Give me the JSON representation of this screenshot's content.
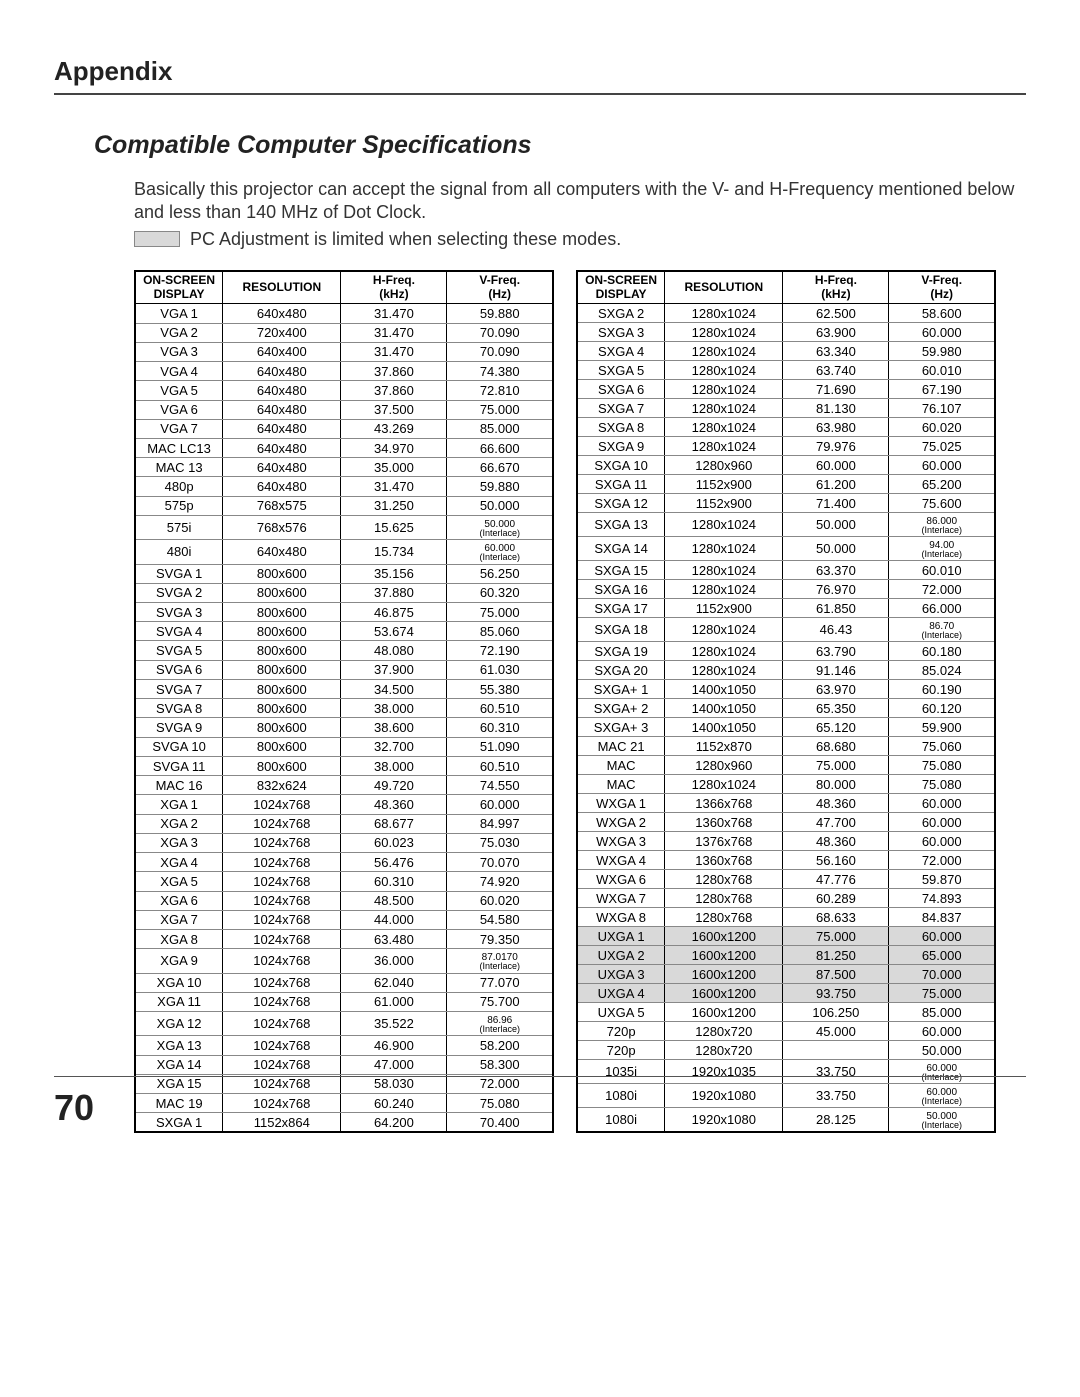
{
  "section_title": "Appendix",
  "sub_title": "Compatible Computer Specifications",
  "body_text": "Basically this projector can accept the signal from all computers with the V- and H-Frequency mentioned below and less than 140 MHz of Dot Clock.",
  "legend_text": "PC Adjustment is limited when selecting these modes.",
  "page_number": "70",
  "headers": {
    "c1": "ON-SCREEN\nDISPLAY",
    "c2": "RESOLUTION",
    "c3_top": "H-Freq.",
    "c3_bot": "(kHz)",
    "c4_top": "V-Freq.",
    "c4_bot": "(Hz)"
  },
  "highlight_color": "#d9d9d9",
  "table_left": [
    {
      "d": "VGA 1",
      "r": "640x480",
      "h": "31.470",
      "v": "59.880"
    },
    {
      "d": "VGA 2",
      "r": "720x400",
      "h": "31.470",
      "v": "70.090"
    },
    {
      "d": "VGA 3",
      "r": "640x400",
      "h": "31.470",
      "v": "70.090"
    },
    {
      "d": "VGA 4",
      "r": "640x480",
      "h": "37.860",
      "v": "74.380"
    },
    {
      "d": "VGA 5",
      "r": "640x480",
      "h": "37.860",
      "v": "72.810"
    },
    {
      "d": "VGA 6",
      "r": "640x480",
      "h": "37.500",
      "v": "75.000"
    },
    {
      "d": "VGA 7",
      "r": "640x480",
      "h": "43.269",
      "v": "85.000"
    },
    {
      "d": "MAC LC13",
      "r": "640x480",
      "h": "34.970",
      "v": "66.600"
    },
    {
      "d": "MAC 13",
      "r": "640x480",
      "h": "35.000",
      "v": "66.670"
    },
    {
      "d": "480p",
      "r": "640x480",
      "h": "31.470",
      "v": "59.880"
    },
    {
      "d": "575p",
      "r": "768x575",
      "h": "31.250",
      "v": "50.000"
    },
    {
      "d": "575i",
      "r": "768x576",
      "h": "15.625",
      "v": "50.000",
      "vi": "(Interlace)"
    },
    {
      "d": "480i",
      "r": "640x480",
      "h": "15.734",
      "v": "60.000",
      "vi": "(Interlace)"
    },
    {
      "d": "SVGA 1",
      "r": "800x600",
      "h": "35.156",
      "v": "56.250"
    },
    {
      "d": "SVGA 2",
      "r": "800x600",
      "h": "37.880",
      "v": "60.320"
    },
    {
      "d": "SVGA 3",
      "r": "800x600",
      "h": "46.875",
      "v": "75.000"
    },
    {
      "d": "SVGA 4",
      "r": "800x600",
      "h": "53.674",
      "v": "85.060"
    },
    {
      "d": "SVGA 5",
      "r": "800x600",
      "h": "48.080",
      "v": "72.190"
    },
    {
      "d": "SVGA 6",
      "r": "800x600",
      "h": "37.900",
      "v": "61.030"
    },
    {
      "d": "SVGA 7",
      "r": "800x600",
      "h": "34.500",
      "v": "55.380"
    },
    {
      "d": "SVGA 8",
      "r": "800x600",
      "h": "38.000",
      "v": "60.510"
    },
    {
      "d": "SVGA 9",
      "r": "800x600",
      "h": "38.600",
      "v": "60.310"
    },
    {
      "d": "SVGA 10",
      "r": "800x600",
      "h": "32.700",
      "v": "51.090"
    },
    {
      "d": "SVGA 11",
      "r": "800x600",
      "h": "38.000",
      "v": "60.510"
    },
    {
      "d": "MAC 16",
      "r": "832x624",
      "h": "49.720",
      "v": "74.550"
    },
    {
      "d": "XGA 1",
      "r": "1024x768",
      "h": "48.360",
      "v": "60.000"
    },
    {
      "d": "XGA 2",
      "r": "1024x768",
      "h": "68.677",
      "v": "84.997"
    },
    {
      "d": "XGA 3",
      "r": "1024x768",
      "h": "60.023",
      "v": "75.030"
    },
    {
      "d": "XGA 4",
      "r": "1024x768",
      "h": "56.476",
      "v": "70.070"
    },
    {
      "d": "XGA 5",
      "r": "1024x768",
      "h": "60.310",
      "v": "74.920"
    },
    {
      "d": "XGA 6",
      "r": "1024x768",
      "h": "48.500",
      "v": "60.020"
    },
    {
      "d": "XGA 7",
      "r": "1024x768",
      "h": "44.000",
      "v": "54.580"
    },
    {
      "d": "XGA 8",
      "r": "1024x768",
      "h": "63.480",
      "v": "79.350"
    },
    {
      "d": "XGA 9",
      "r": "1024x768",
      "h": "36.000",
      "v": "87.0170",
      "vi": "(Interlace)"
    },
    {
      "d": "XGA 10",
      "r": "1024x768",
      "h": "62.040",
      "v": "77.070"
    },
    {
      "d": "XGA 11",
      "r": "1024x768",
      "h": "61.000",
      "v": "75.700"
    },
    {
      "d": "XGA 12",
      "r": "1024x768",
      "h": "35.522",
      "v": "86.96",
      "vi": "(Interlace)"
    },
    {
      "d": "XGA 13",
      "r": "1024x768",
      "h": "46.900",
      "v": "58.200"
    },
    {
      "d": "XGA 14",
      "r": "1024x768",
      "h": "47.000",
      "v": "58.300"
    },
    {
      "d": "XGA 15",
      "r": "1024x768",
      "h": "58.030",
      "v": "72.000"
    },
    {
      "d": "MAC 19",
      "r": "1024x768",
      "h": "60.240",
      "v": "75.080"
    },
    {
      "d": "SXGA 1",
      "r": "1152x864",
      "h": "64.200",
      "v": "70.400"
    }
  ],
  "table_right": [
    {
      "d": "SXGA 2",
      "r": "1280x1024",
      "h": "62.500",
      "v": "58.600"
    },
    {
      "d": "SXGA 3",
      "r": "1280x1024",
      "h": "63.900",
      "v": "60.000"
    },
    {
      "d": "SXGA 4",
      "r": "1280x1024",
      "h": "63.340",
      "v": "59.980"
    },
    {
      "d": "SXGA 5",
      "r": "1280x1024",
      "h": "63.740",
      "v": "60.010"
    },
    {
      "d": "SXGA 6",
      "r": "1280x1024",
      "h": "71.690",
      "v": "67.190"
    },
    {
      "d": "SXGA 7",
      "r": "1280x1024",
      "h": "81.130",
      "v": "76.107"
    },
    {
      "d": "SXGA 8",
      "r": "1280x1024",
      "h": "63.980",
      "v": "60.020"
    },
    {
      "d": "SXGA 9",
      "r": "1280x1024",
      "h": "79.976",
      "v": "75.025"
    },
    {
      "d": "SXGA 10",
      "r": "1280x960",
      "h": "60.000",
      "v": "60.000"
    },
    {
      "d": "SXGA 11",
      "r": "1152x900",
      "h": "61.200",
      "v": "65.200"
    },
    {
      "d": "SXGA 12",
      "r": "1152x900",
      "h": "71.400",
      "v": "75.600"
    },
    {
      "d": "SXGA 13",
      "r": "1280x1024",
      "h": "50.000",
      "v": "86.000",
      "vi": "(Interlace)"
    },
    {
      "d": "SXGA 14",
      "r": "1280x1024",
      "h": "50.000",
      "v": "94.00",
      "vi": "(Interlace)"
    },
    {
      "d": "SXGA 15",
      "r": "1280x1024",
      "h": "63.370",
      "v": "60.010"
    },
    {
      "d": "SXGA 16",
      "r": "1280x1024",
      "h": "76.970",
      "v": "72.000"
    },
    {
      "d": "SXGA 17",
      "r": "1152x900",
      "h": "61.850",
      "v": "66.000"
    },
    {
      "d": "SXGA 18",
      "r": "1280x1024",
      "h": "46.43",
      "v": "86.70",
      "vi": "(Interlace)"
    },
    {
      "d": "SXGA 19",
      "r": "1280x1024",
      "h": "63.790",
      "v": "60.180"
    },
    {
      "d": "SXGA 20",
      "r": "1280x1024",
      "h": "91.146",
      "v": "85.024"
    },
    {
      "d": "SXGA+ 1",
      "r": "1400x1050",
      "h": "63.970",
      "v": "60.190"
    },
    {
      "d": "SXGA+ 2",
      "r": "1400x1050",
      "h": "65.350",
      "v": "60.120"
    },
    {
      "d": "SXGA+ 3",
      "r": "1400x1050",
      "h": "65.120",
      "v": "59.900"
    },
    {
      "d": "MAC 21",
      "r": "1152x870",
      "h": "68.680",
      "v": "75.060"
    },
    {
      "d": "MAC",
      "r": "1280x960",
      "h": "75.000",
      "v": "75.080"
    },
    {
      "d": "MAC",
      "r": "1280x1024",
      "h": "80.000",
      "v": "75.080"
    },
    {
      "d": "WXGA 1",
      "r": "1366x768",
      "h": "48.360",
      "v": "60.000"
    },
    {
      "d": "WXGA 2",
      "r": "1360x768",
      "h": "47.700",
      "v": "60.000"
    },
    {
      "d": "WXGA 3",
      "r": "1376x768",
      "h": "48.360",
      "v": "60.000"
    },
    {
      "d": "WXGA 4",
      "r": "1360x768",
      "h": "56.160",
      "v": "72.000"
    },
    {
      "d": "WXGA 6",
      "r": "1280x768",
      "h": "47.776",
      "v": "59.870"
    },
    {
      "d": "WXGA 7",
      "r": "1280x768",
      "h": "60.289",
      "v": "74.893"
    },
    {
      "d": "WXGA 8",
      "r": "1280x768",
      "h": "68.633",
      "v": "84.837"
    },
    {
      "d": "UXGA 1",
      "r": "1600x1200",
      "h": "75.000",
      "v": "60.000",
      "lim": true
    },
    {
      "d": "UXGA 2",
      "r": "1600x1200",
      "h": "81.250",
      "v": "65.000",
      "lim": true
    },
    {
      "d": "UXGA 3",
      "r": "1600x1200",
      "h": "87.500",
      "v": "70.000",
      "lim": true
    },
    {
      "d": "UXGA 4",
      "r": "1600x1200",
      "h": "93.750",
      "v": "75.000",
      "lim": true
    },
    {
      "d": "UXGA 5",
      "r": "1600x1200",
      "h": "106.250",
      "v": "85.000"
    },
    {
      "d": "720p",
      "r": "1280x720",
      "h": "45.000",
      "v": "60.000"
    },
    {
      "d": "720p",
      "r": "1280x720",
      "h": "",
      "v": "50.000"
    },
    {
      "d": "1035i",
      "r": "1920x1035",
      "h": "33.750",
      "v": "60.000",
      "vi": "(Interlace)"
    },
    {
      "d": "1080i",
      "r": "1920x1080",
      "h": "33.750",
      "v": "60.000",
      "vi": "(Interlace)"
    },
    {
      "d": "1080i",
      "r": "1920x1080",
      "h": "28.125",
      "v": "50.000",
      "vi": "(Interlace)"
    }
  ]
}
